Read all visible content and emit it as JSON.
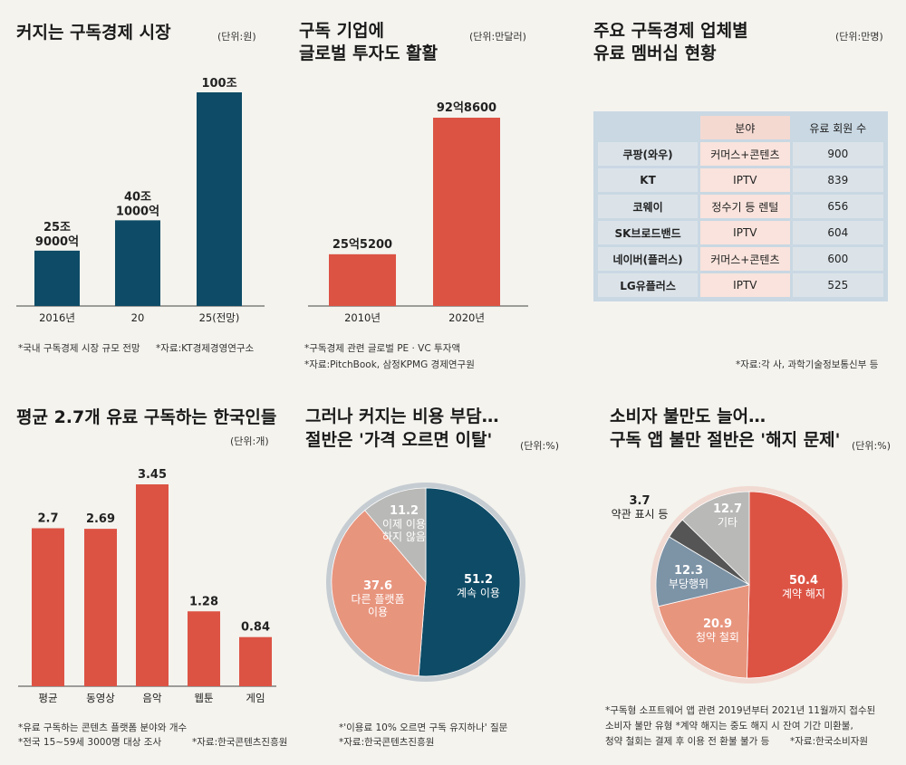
{
  "colors": {
    "teal": "#0e4b66",
    "red": "#dc5344",
    "salmon": "#e8957e",
    "gray": "#b9b9b7",
    "dark": "#555555",
    "slate": "#7d93a6",
    "bg": "#f4f3ee"
  },
  "panel1": {
    "title": "커지는 구독경제 시장",
    "unit": "(단위:원)",
    "notes": [
      "*국내 구독경제 시장 규모 전망",
      "*자료:KT경제경영연구소"
    ],
    "chart_data": {
      "type": "bar",
      "categories": [
        "2016년",
        "20",
        "25(전망)"
      ],
      "values": [
        259000,
        401000,
        1000000
      ],
      "labels": [
        "25조\n9000억",
        "40조\n1000억",
        "100조"
      ],
      "ylim": [
        0,
        1000000
      ],
      "unit": "억원"
    }
  },
  "panel2": {
    "title": "구독 기업에\n글로벌 투자도 활활",
    "unit": "(단위:만달러)",
    "notes": [
      "*구독경제 관련 글로벌 PE · VC 투자액",
      "*자료:PitchBook, 삼정KPMG 경제연구원"
    ],
    "chart_data": {
      "type": "bar",
      "categories": [
        "2010년",
        "2020년"
      ],
      "values": [
        255200,
        928600
      ],
      "labels": [
        "25억5200",
        "92억8600"
      ],
      "ylim": [
        0,
        928600
      ]
    }
  },
  "panel3": {
    "title": "주요 구독경제 업체별\n유료 멤버십 현황",
    "unit": "(단위:만명)",
    "notes": [
      "*자료:각 사, 과학기술정보통신부 등"
    ],
    "chart_data": {
      "type": "table",
      "headers": [
        "",
        "분야",
        "유료 회원 수"
      ],
      "rows": [
        [
          "쿠팡(와우)",
          "커머스+콘텐츠",
          "900"
        ],
        [
          "KT",
          "IPTV",
          "839"
        ],
        [
          "코웨이",
          "정수기 등 렌털",
          "656"
        ],
        [
          "SK브로드밴드",
          "IPTV",
          "604"
        ],
        [
          "네이버(플러스)",
          "커머스+콘텐츠",
          "600"
        ],
        [
          "LG유플러스",
          "IPTV",
          "525"
        ]
      ]
    }
  },
  "panel4": {
    "title": "평균 2.7개 유료 구독하는 한국인들",
    "unit": "(단위:개)",
    "notes": [
      "*유료 구독하는 콘텐츠 플랫폼 분야와 개수",
      "*전국 15~59세 3000명 대상 조사",
      "*자료:한국콘텐츠진흥원"
    ],
    "chart_data": {
      "type": "bar",
      "categories": [
        "평균",
        "동영상",
        "음악",
        "웹툰",
        "게임"
      ],
      "values": [
        2.7,
        2.69,
        3.45,
        1.28,
        0.84
      ],
      "ylim": [
        0,
        3.45
      ]
    }
  },
  "panel5": {
    "title_line1": "그러나 커지는 비용 부담…",
    "title_line2": "절반은 '가격 오르면 이탈'",
    "unit": "(단위:%)",
    "notes": [
      "*'이용료 10% 오르면 구독 유지하나' 질문",
      "*자료:한국콘텐츠진흥원"
    ],
    "chart_data": {
      "type": "pie",
      "slices": [
        {
          "label": "계속 이용",
          "value": 51.2,
          "color": "#0e4b66"
        },
        {
          "label": "다른 플랫폼\n이용",
          "value": 37.6,
          "color": "#e8957e"
        },
        {
          "label": "이제 이용\n하지 않음",
          "value": 11.2,
          "color": "#b9b9b7"
        }
      ]
    }
  },
  "panel6": {
    "title_line1": "소비자 불만도 늘어…",
    "title_line2": "구독 앱 불만 절반은 '해지 문제'",
    "unit": "(단위:%)",
    "notes": [
      "*구독형 소프트웨어 앱 관련 2019년부터 2021년 11월까지 접수된",
      "소비자 불만 유형    *계약 해지는 중도 해지 시 잔여 기간 미환불,",
      "청약 철회는 결제 후 이용 전 환불 불가 등",
      "*자료:한국소비자원"
    ],
    "chart_data": {
      "type": "pie",
      "slices": [
        {
          "label": "계약 해지",
          "value": 50.4,
          "color": "#dc5344"
        },
        {
          "label": "청약 철회",
          "value": 20.9,
          "color": "#e8957e"
        },
        {
          "label": "부당행위",
          "value": 12.3,
          "color": "#7d93a6"
        },
        {
          "label": "약관 표시 등",
          "value": 3.7,
          "color": "#555555"
        },
        {
          "label": "기타",
          "value": 12.7,
          "color": "#b9b9b7"
        }
      ]
    }
  }
}
